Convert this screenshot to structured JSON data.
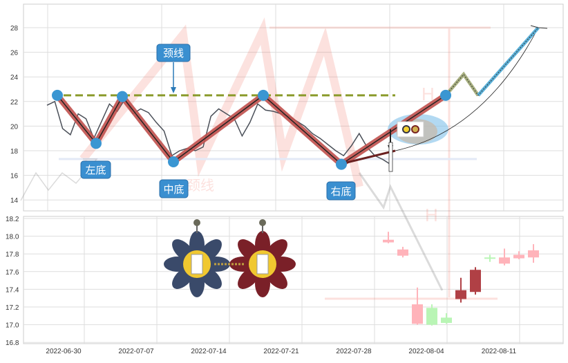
{
  "chart_data": [
    {
      "type": "line",
      "panel": "pattern",
      "yticks": [
        14,
        16,
        18,
        20,
        22,
        24,
        26,
        28
      ],
      "ylim": [
        13,
        29.8
      ],
      "grid": true,
      "price_line": [
        21.7,
        22.0,
        19.8,
        19.3,
        21.0,
        20.6,
        19.0,
        20.4,
        21.8,
        21.2,
        22.2,
        21.0,
        21.4,
        21.1,
        20.3,
        19.6,
        17.6,
        18.0,
        18.2,
        18.0,
        18.3,
        20.8,
        21.4,
        21.0,
        20.6,
        19.2,
        20.3,
        21.8,
        21.3,
        21.2,
        21.0,
        20.8,
        20.4,
        20.0,
        19.4,
        19.0,
        18.5,
        18.0,
        17.6,
        18.4,
        19.4,
        18.3,
        17.6,
        17.3,
        16.9
      ],
      "neckline": 22.5,
      "pattern_points": [
        22.5,
        18.6,
        22.4,
        17.1,
        22.5,
        16.9,
        22.5
      ],
      "projection_points": [
        22.5,
        24.2,
        22.5,
        28.0
      ],
      "annotations": [
        {
          "text": "颈线",
          "target": "neckline"
        },
        {
          "text": "左底",
          "target": 1
        },
        {
          "text": "中底",
          "target": 3
        },
        {
          "text": "右底",
          "target": 5
        }
      ]
    },
    {
      "type": "candlestick",
      "panel": "price",
      "yticks": [
        16.8,
        17.0,
        17.2,
        17.4,
        17.6,
        17.8,
        18.0,
        18.2
      ],
      "ylim": [
        16.8,
        18.2
      ],
      "xticks": [
        "2022-06-30",
        "2022-07-07",
        "2022-07-14",
        "2022-07-21",
        "2022-07-28",
        "2022-08-04",
        "2022-08-11"
      ],
      "grid": true,
      "candles": [
        {
          "o": 17.93,
          "c": 17.96,
          "h": 18.05,
          "l": 17.92,
          "color": "#ffb3ba"
        },
        {
          "o": 17.85,
          "c": 17.78,
          "h": 17.88,
          "l": 17.76,
          "color": "#ffb3ba"
        },
        {
          "o": 17.23,
          "c": 17.01,
          "h": 17.42,
          "l": 17.0,
          "color": "#ffb3ba"
        },
        {
          "o": 17.19,
          "c": 17.0,
          "h": 17.23,
          "l": 16.99,
          "color": "#b9f5b5"
        },
        {
          "o": 17.08,
          "c": 17.02,
          "h": 17.13,
          "l": 17.01,
          "color": "#b9f5b5"
        },
        {
          "o": 17.29,
          "c": 17.39,
          "h": 17.53,
          "l": 17.25,
          "color": "#b04045"
        },
        {
          "o": 17.37,
          "c": 17.62,
          "h": 17.65,
          "l": 17.34,
          "color": "#b04045"
        },
        {
          "o": 17.75,
          "c": 17.76,
          "h": 17.79,
          "l": 17.71,
          "color": "#b9f5b5"
        },
        {
          "o": 17.69,
          "c": 17.76,
          "h": 17.86,
          "l": 17.67,
          "color": "#ffb3ba"
        },
        {
          "o": 17.75,
          "c": 17.79,
          "h": 17.83,
          "l": 17.74,
          "color": "#ffb3ba"
        },
        {
          "o": 17.76,
          "c": 17.84,
          "h": 17.91,
          "l": 17.7,
          "color": "#ffb3ba"
        }
      ]
    }
  ],
  "colors": {
    "pattern": "#c0504d",
    "neckline": "#8a9a2a",
    "marker": "#3a96d2",
    "label_bg": "#3a8fd0",
    "projection": "#5ab0d8"
  },
  "icons": [
    "flower-mahjong-blue-icon",
    "flower-mahjong-red-icon",
    "mini-flowers-icon"
  ]
}
